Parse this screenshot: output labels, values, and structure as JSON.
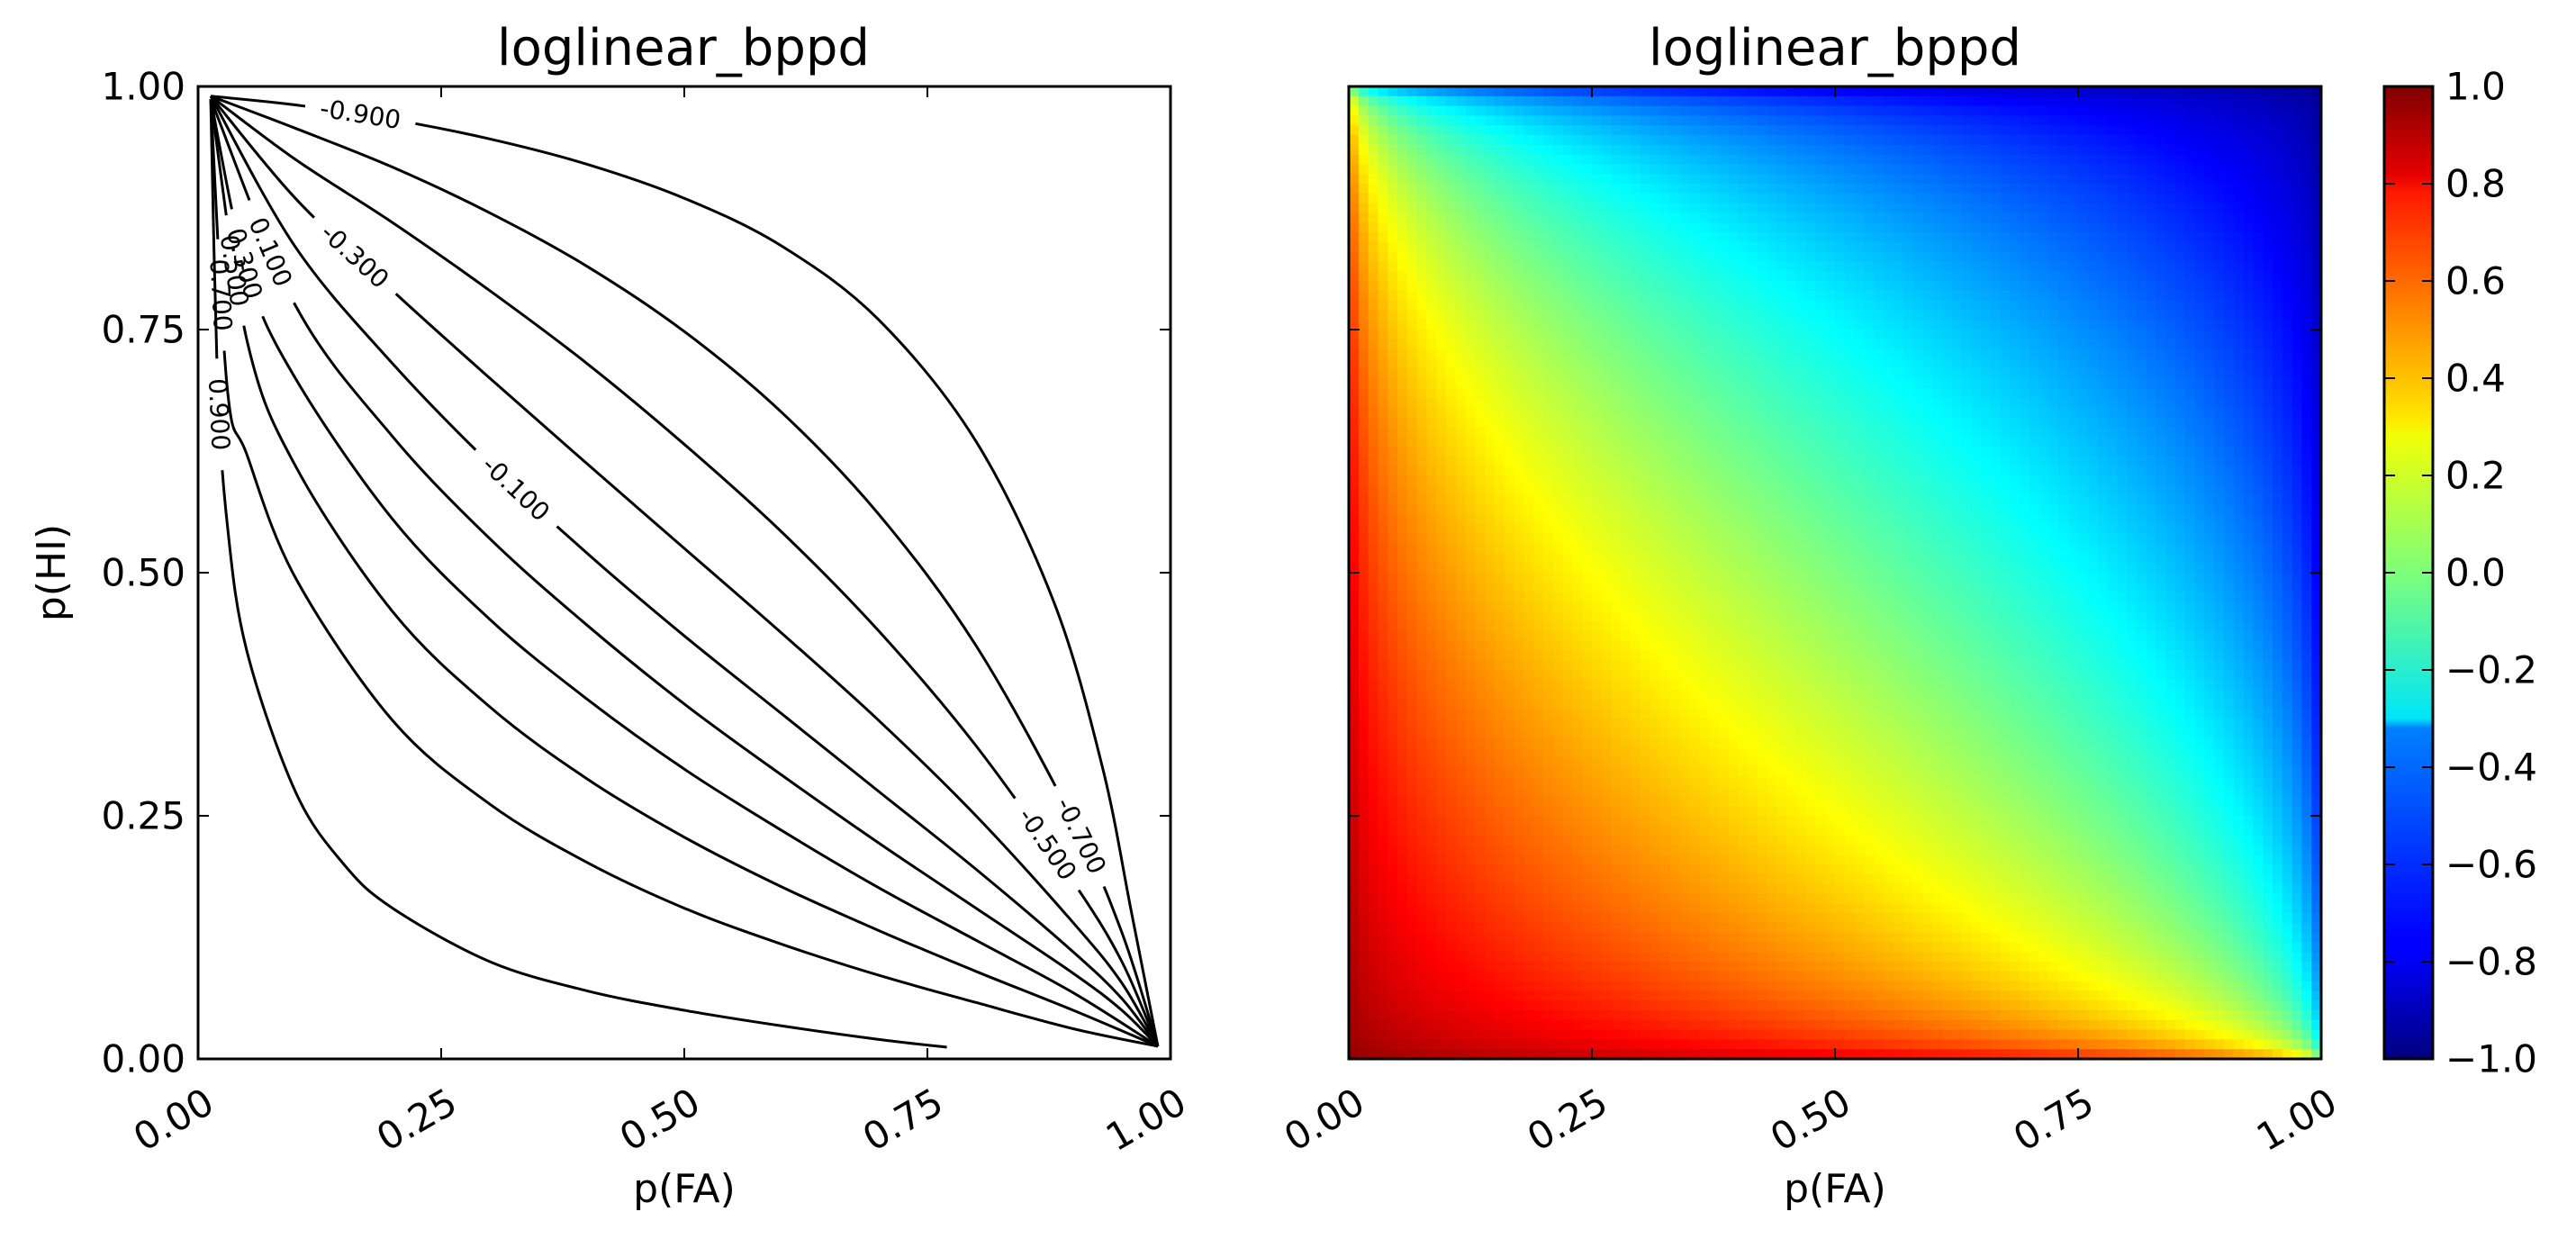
{
  "chart_data": [
    {
      "type": "contour",
      "title": "loglinear_bppd",
      "xlabel": "p(FA)",
      "ylabel": "p(HI)",
      "xlim": [
        0,
        1
      ],
      "ylim": [
        0,
        1
      ],
      "xticks": [
        "0.00",
        "0.25",
        "0.50",
        "0.75",
        "1.00"
      ],
      "yticks": [
        "0.00",
        "0.25",
        "0.50",
        "0.75",
        "1.00"
      ],
      "grid": false,
      "line_color": "#000000",
      "levels": [
        {
          "level": -0.9,
          "label": "-0.900",
          "points": [
            [
              0.013,
              0.99
            ],
            [
              0.1,
              0.981
            ],
            [
              0.2,
              0.966
            ],
            [
              0.3,
              0.946
            ],
            [
              0.4,
              0.92
            ],
            [
              0.5,
              0.885
            ],
            [
              0.6,
              0.836
            ],
            [
              0.7,
              0.76
            ],
            [
              0.8,
              0.635
            ],
            [
              0.88,
              0.47
            ],
            [
              0.93,
              0.3
            ],
            [
              0.96,
              0.15
            ],
            [
              0.987,
              0.013
            ]
          ]
        },
        {
          "level": -0.7,
          "label": "-0.700",
          "points": [
            [
              0.013,
              0.99
            ],
            [
              0.1,
              0.957
            ],
            [
              0.2,
              0.917
            ],
            [
              0.3,
              0.87
            ],
            [
              0.4,
              0.815
            ],
            [
              0.5,
              0.748
            ],
            [
              0.6,
              0.665
            ],
            [
              0.7,
              0.56
            ],
            [
              0.8,
              0.425
            ],
            [
              0.9,
              0.245
            ],
            [
              0.95,
              0.13
            ],
            [
              0.987,
              0.013
            ]
          ]
        },
        {
          "level": -0.5,
          "label": "-0.500",
          "points": [
            [
              0.013,
              0.99
            ],
            [
              0.1,
              0.925
            ],
            [
              0.2,
              0.86
            ],
            [
              0.3,
              0.79
            ],
            [
              0.4,
              0.715
            ],
            [
              0.5,
              0.632
            ],
            [
              0.6,
              0.542
            ],
            [
              0.7,
              0.44
            ],
            [
              0.8,
              0.322
            ],
            [
              0.9,
              0.182
            ],
            [
              0.95,
              0.1
            ],
            [
              0.987,
              0.013
            ]
          ]
        },
        {
          "level": -0.3,
          "label": "-0.300",
          "points": [
            [
              0.013,
              0.99
            ],
            [
              0.1,
              0.885
            ],
            [
              0.2,
              0.79
            ],
            [
              0.3,
              0.7
            ],
            [
              0.4,
              0.612
            ],
            [
              0.5,
              0.525
            ],
            [
              0.6,
              0.438
            ],
            [
              0.7,
              0.348
            ],
            [
              0.8,
              0.25
            ],
            [
              0.9,
              0.14
            ],
            [
              0.95,
              0.078
            ],
            [
              0.987,
              0.013
            ]
          ]
        },
        {
          "level": -0.1,
          "label": "-0.100",
          "points": [
            [
              0.013,
              0.99
            ],
            [
              0.1,
              0.835
            ],
            [
              0.2,
              0.715
            ],
            [
              0.3,
              0.612
            ],
            [
              0.4,
              0.52
            ],
            [
              0.5,
              0.435
            ],
            [
              0.6,
              0.355
            ],
            [
              0.7,
              0.275
            ],
            [
              0.8,
              0.195
            ],
            [
              0.9,
              0.11
            ],
            [
              0.95,
              0.062
            ],
            [
              0.987,
              0.013
            ]
          ]
        },
        {
          "level": 0.1,
          "label": "0.100",
          "points": [
            [
              0.013,
              0.987
            ],
            [
              0.1,
              0.775
            ],
            [
              0.2,
              0.64
            ],
            [
              0.3,
              0.535
            ],
            [
              0.4,
              0.446
            ],
            [
              0.5,
              0.365
            ],
            [
              0.6,
              0.292
            ],
            [
              0.7,
              0.222
            ],
            [
              0.8,
              0.155
            ],
            [
              0.9,
              0.088
            ],
            [
              0.95,
              0.05
            ],
            [
              0.987,
              0.013
            ]
          ]
        },
        {
          "level": 0.3,
          "label": "0.300",
          "points": [
            [
              0.013,
              0.987
            ],
            [
              0.05,
              0.81
            ],
            [
              0.1,
              0.7
            ],
            [
              0.2,
              0.555
            ],
            [
              0.3,
              0.452
            ],
            [
              0.4,
              0.37
            ],
            [
              0.5,
              0.298
            ],
            [
              0.6,
              0.235
            ],
            [
              0.7,
              0.176
            ],
            [
              0.8,
              0.122
            ],
            [
              0.9,
              0.068
            ],
            [
              0.987,
              0.013
            ]
          ]
        },
        {
          "level": 0.5,
          "label": "0.500",
          "points": [
            [
              0.013,
              0.987
            ],
            [
              0.05,
              0.74
            ],
            [
              0.1,
              0.61
            ],
            [
              0.2,
              0.46
            ],
            [
              0.3,
              0.362
            ],
            [
              0.4,
              0.288
            ],
            [
              0.5,
              0.228
            ],
            [
              0.6,
              0.177
            ],
            [
              0.7,
              0.132
            ],
            [
              0.8,
              0.09
            ],
            [
              0.9,
              0.05
            ],
            [
              0.987,
              0.013
            ]
          ]
        },
        {
          "level": 0.7,
          "label": "0.700",
          "points": [
            [
              0.013,
              0.987
            ],
            [
              0.03,
              0.69
            ],
            [
              0.05,
              0.622
            ],
            [
              0.1,
              0.495
            ],
            [
              0.2,
              0.348
            ],
            [
              0.3,
              0.262
            ],
            [
              0.4,
              0.202
            ],
            [
              0.5,
              0.155
            ],
            [
              0.6,
              0.118
            ],
            [
              0.7,
              0.086
            ],
            [
              0.8,
              0.058
            ],
            [
              0.9,
              0.031
            ],
            [
              0.987,
              0.013
            ]
          ]
        },
        {
          "level": 0.9,
          "label": "0.900",
          "points": [
            [
              0.013,
              0.987
            ],
            [
              0.02,
              0.7
            ],
            [
              0.03,
              0.55
            ],
            [
              0.05,
              0.42
            ],
            [
              0.1,
              0.275
            ],
            [
              0.15,
              0.2
            ],
            [
              0.2,
              0.155
            ],
            [
              0.3,
              0.1
            ],
            [
              0.4,
              0.07
            ],
            [
              0.5,
              0.05
            ],
            [
              0.6,
              0.034
            ],
            [
              0.7,
              0.02
            ],
            [
              0.77,
              0.012
            ]
          ]
        }
      ]
    },
    {
      "type": "heatmap",
      "title": "loglinear_bppd",
      "xlabel": "p(FA)",
      "xlim": [
        0,
        1
      ],
      "ylim": [
        0,
        1
      ],
      "xticks": [
        "0.00",
        "0.25",
        "0.50",
        "0.75",
        "1.00"
      ],
      "colormap": "jet",
      "grid_resolution": 100,
      "value_range": [
        -1.0,
        1.0
      ],
      "colorbar": {
        "ticks": [
          "1.0",
          "0.8",
          "0.6",
          "0.4",
          "0.2",
          "0.0",
          "−0.2",
          "−0.4",
          "−0.6",
          "−0.8",
          "−1.0"
        ]
      }
    }
  ]
}
